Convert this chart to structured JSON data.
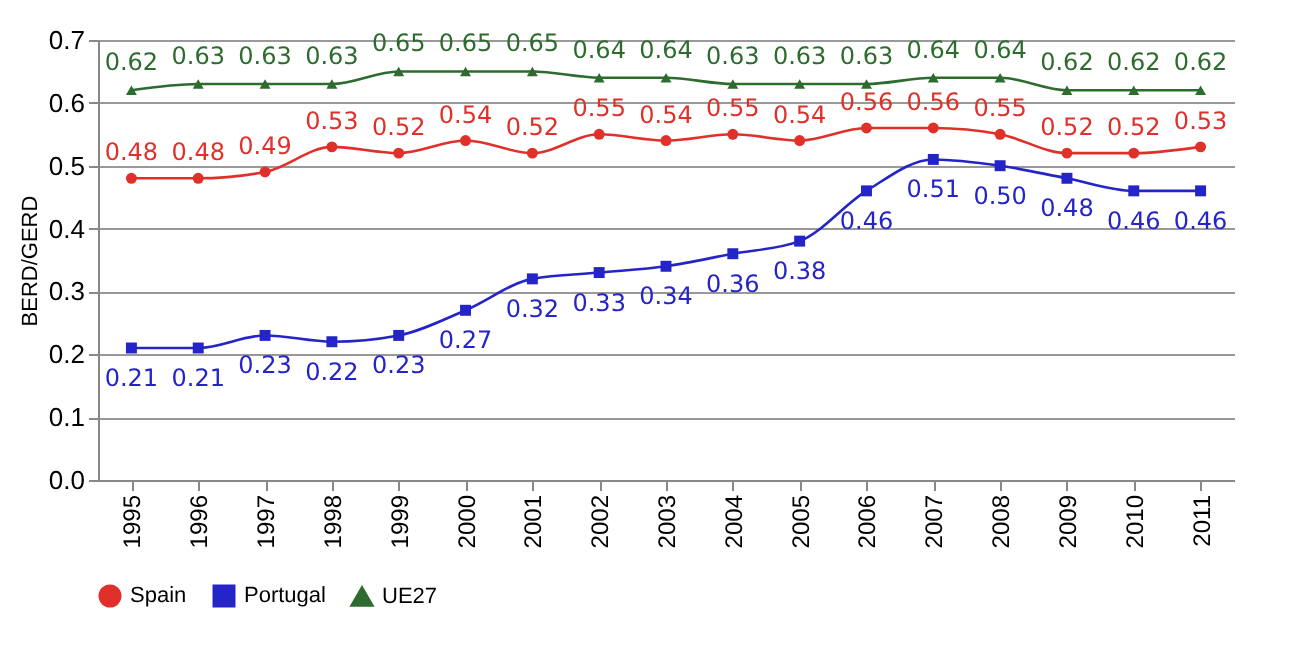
{
  "chart_data": {
    "type": "line",
    "ylabel": "BERD/GERD",
    "categories": [
      "1995",
      "1996",
      "1997",
      "1998",
      "1999",
      "2000",
      "2001",
      "2002",
      "2003",
      "2004",
      "2005",
      "2006",
      "2007",
      "2008",
      "2009",
      "2010",
      "2011"
    ],
    "series": [
      {
        "name": "Spain",
        "color": "#e0302a",
        "marker": "circle",
        "values": [
          0.48,
          0.48,
          0.49,
          0.53,
          0.52,
          0.54,
          0.52,
          0.55,
          0.54,
          0.55,
          0.54,
          0.56,
          0.56,
          0.55,
          0.52,
          0.52,
          0.53
        ],
        "value_labels": [
          "0.48",
          "0.48",
          "0.49",
          "0.53",
          "0.52",
          "0.54",
          "0.52",
          "0.55",
          "0.54",
          "0.55",
          "0.54",
          "0.56",
          "0.56",
          "0.55",
          "0.52",
          "0.52",
          "0.53"
        ]
      },
      {
        "name": "Portugal",
        "color": "#2424c8",
        "marker": "square",
        "values": [
          0.21,
          0.21,
          0.23,
          0.22,
          0.23,
          0.27,
          0.32,
          0.33,
          0.34,
          0.36,
          0.38,
          0.46,
          0.51,
          0.5,
          0.48,
          0.46,
          0.46
        ],
        "value_labels": [
          "0.21",
          "0.21",
          "0.23",
          "0.22",
          "0.23",
          "0.27",
          "0.32",
          "0.33",
          "0.34",
          "0.36",
          "0.38",
          "0.46",
          "0.51",
          "0.50",
          "0.48",
          "0.46",
          "0.46"
        ]
      },
      {
        "name": "UE27",
        "color": "#2e6b2e",
        "marker": "triangle",
        "values": [
          0.62,
          0.63,
          0.63,
          0.63,
          0.65,
          0.65,
          0.65,
          0.64,
          0.64,
          0.63,
          0.63,
          0.63,
          0.64,
          0.64,
          0.62,
          0.62,
          0.62
        ],
        "value_labels": [
          "0.62",
          "0.63",
          "0.63",
          "0.63",
          "0.65",
          "0.65",
          "0.65",
          "0.64",
          "0.64",
          "0.63",
          "0.63",
          "0.63",
          "0.64",
          "0.64",
          "0.62",
          "0.62",
          "0.62"
        ]
      }
    ],
    "ylim": [
      0,
      0.7
    ],
    "yticks": [
      {
        "value": 0,
        "label": "0.0"
      },
      0.1,
      0.2,
      0.3,
      0.4,
      0.5,
      0.6,
      0.7
    ],
    "grid": "y",
    "legend": "bottom"
  }
}
